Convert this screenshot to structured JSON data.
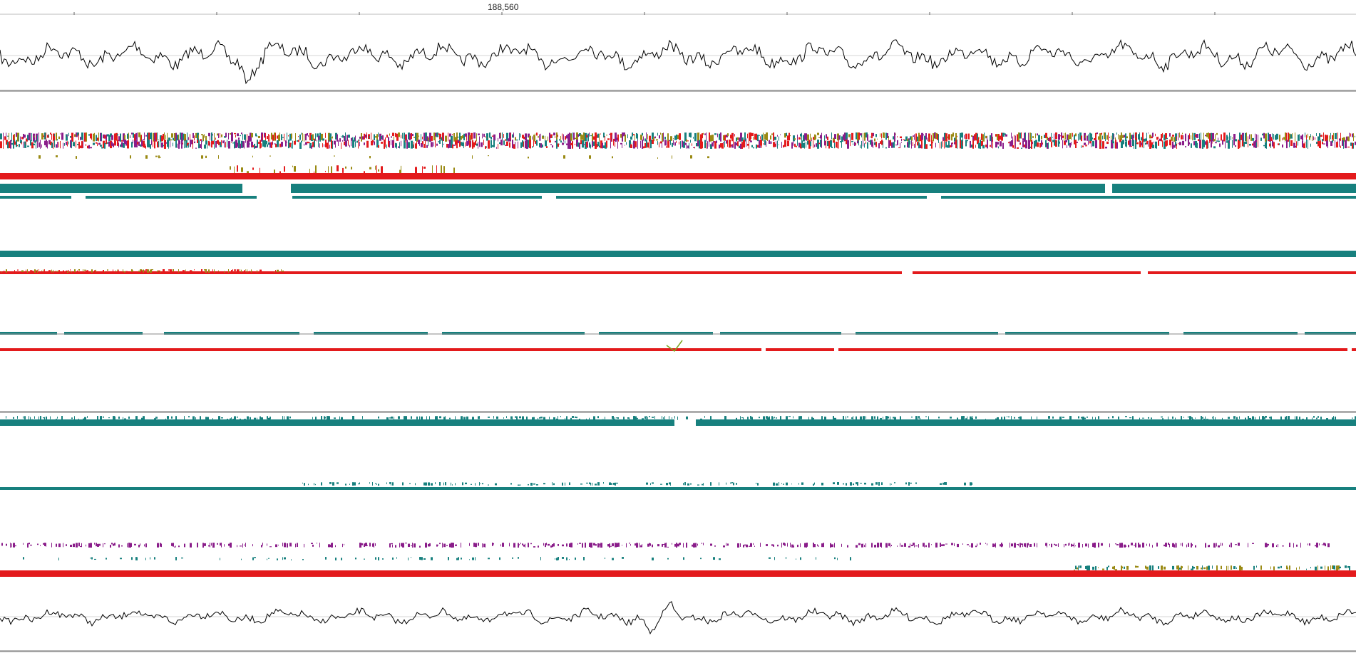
{
  "ruler": {
    "label": "188,560"
  },
  "colors": {
    "background": "#ffffff",
    "trace": "#000000",
    "red": "#e31a1c",
    "teal": "#17807e",
    "purple": "#8a1d8a",
    "olive": "#9a8a14",
    "separator": "#8a8a8a"
  },
  "panels": [
    {
      "name": "top-trace-panel",
      "kind": "line-trace"
    },
    {
      "name": "dense-alignment-panel",
      "kind": "feature-rows"
    },
    {
      "name": "middle-alignment-panel",
      "kind": "feature-rows"
    },
    {
      "name": "lower-alignment-panel",
      "kind": "feature-rows"
    },
    {
      "name": "bottom-trace-panel",
      "kind": "line-trace"
    }
  ]
}
